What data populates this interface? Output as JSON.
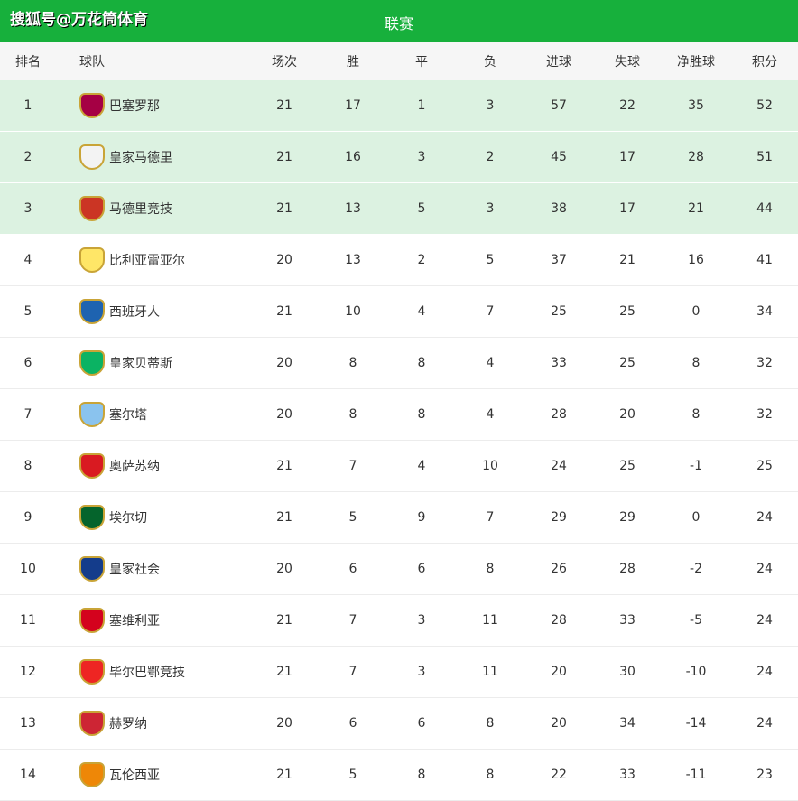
{
  "watermark": "搜狐号@万花筒体育",
  "title": "联赛",
  "headers": [
    "排名",
    "球队",
    "场次",
    "胜",
    "平",
    "负",
    "进球",
    "失球",
    "净胜球",
    "积分"
  ],
  "rows": [
    {
      "rank": "1",
      "team": "巴塞罗那",
      "p": "21",
      "w": "17",
      "d": "1",
      "l": "3",
      "gf": "57",
      "ga": "22",
      "gd": "35",
      "pts": "52",
      "logo": "#a50044",
      "hl": true
    },
    {
      "rank": "2",
      "team": "皇家马德里",
      "p": "21",
      "w": "16",
      "d": "3",
      "l": "2",
      "gf": "45",
      "ga": "17",
      "gd": "28",
      "pts": "51",
      "logo": "#f3f3f3",
      "hl": true
    },
    {
      "rank": "3",
      "team": "马德里竞技",
      "p": "21",
      "w": "13",
      "d": "5",
      "l": "3",
      "gf": "38",
      "ga": "17",
      "gd": "21",
      "pts": "44",
      "logo": "#cb3524",
      "hl": true
    },
    {
      "rank": "4",
      "team": "比利亚雷亚尔",
      "p": "20",
      "w": "13",
      "d": "2",
      "l": "5",
      "gf": "37",
      "ga": "21",
      "gd": "16",
      "pts": "41",
      "logo": "#ffe667",
      "hl": false
    },
    {
      "rank": "5",
      "team": "西班牙人",
      "p": "21",
      "w": "10",
      "d": "4",
      "l": "7",
      "gf": "25",
      "ga": "25",
      "gd": "0",
      "pts": "34",
      "logo": "#1e63b0",
      "hl": false
    },
    {
      "rank": "6",
      "team": "皇家贝蒂斯",
      "p": "20",
      "w": "8",
      "d": "8",
      "l": "4",
      "gf": "33",
      "ga": "25",
      "gd": "8",
      "pts": "32",
      "logo": "#0bb363",
      "hl": false
    },
    {
      "rank": "7",
      "team": "塞尔塔",
      "p": "20",
      "w": "8",
      "d": "8",
      "l": "4",
      "gf": "28",
      "ga": "20",
      "gd": "8",
      "pts": "32",
      "logo": "#8ac3ee",
      "hl": false
    },
    {
      "rank": "8",
      "team": "奥萨苏纳",
      "p": "21",
      "w": "7",
      "d": "4",
      "l": "10",
      "gf": "24",
      "ga": "25",
      "gd": "-1",
      "pts": "25",
      "logo": "#d91a21",
      "hl": false
    },
    {
      "rank": "9",
      "team": "埃尔切",
      "p": "21",
      "w": "5",
      "d": "9",
      "l": "7",
      "gf": "29",
      "ga": "29",
      "gd": "0",
      "pts": "24",
      "logo": "#05642c",
      "hl": false
    },
    {
      "rank": "10",
      "team": "皇家社会",
      "p": "20",
      "w": "6",
      "d": "6",
      "l": "8",
      "gf": "26",
      "ga": "28",
      "gd": "-2",
      "pts": "24",
      "logo": "#143c8b",
      "hl": false
    },
    {
      "rank": "11",
      "team": "塞维利亚",
      "p": "21",
      "w": "7",
      "d": "3",
      "l": "11",
      "gf": "28",
      "ga": "33",
      "gd": "-5",
      "pts": "24",
      "logo": "#d4021d",
      "hl": false
    },
    {
      "rank": "12",
      "team": "毕尔巴鄂竞技",
      "p": "21",
      "w": "7",
      "d": "3",
      "l": "11",
      "gf": "20",
      "ga": "30",
      "gd": "-10",
      "pts": "24",
      "logo": "#ee2523",
      "hl": false
    },
    {
      "rank": "13",
      "team": "赫罗纳",
      "p": "20",
      "w": "6",
      "d": "6",
      "l": "8",
      "gf": "20",
      "ga": "34",
      "gd": "-14",
      "pts": "24",
      "logo": "#cd2534",
      "hl": false
    },
    {
      "rank": "14",
      "team": "瓦伦西亚",
      "p": "21",
      "w": "5",
      "d": "8",
      "l": "8",
      "gf": "22",
      "ga": "33",
      "gd": "-11",
      "pts": "23",
      "logo": "#ee8707",
      "hl": false
    }
  ]
}
